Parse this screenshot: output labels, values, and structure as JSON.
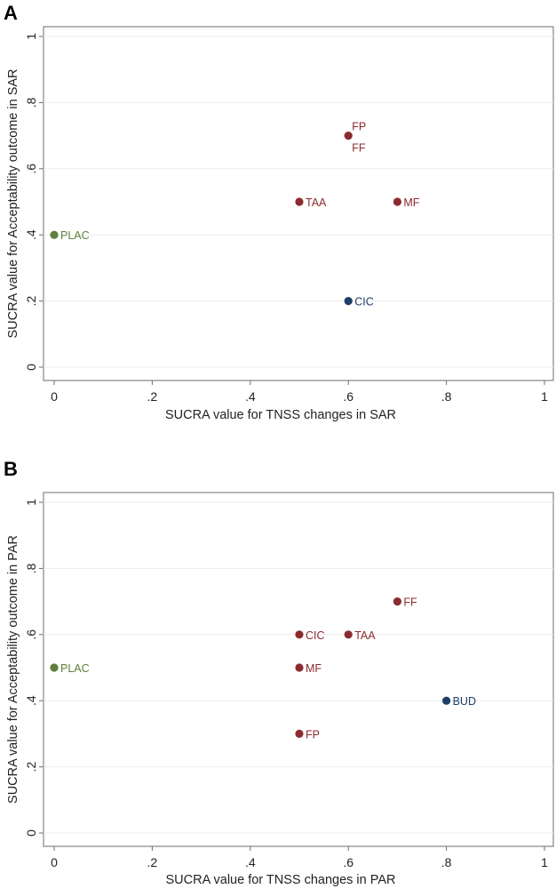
{
  "chart_data": [
    {
      "panel": "A",
      "type": "scatter",
      "xlabel": "SUCRA value for TNSS changes in SAR",
      "ylabel": "SUCRA value for Acceptability outcome in SAR",
      "xlim": [
        0,
        1
      ],
      "ylim": [
        0,
        1
      ],
      "xticks": [
        "0",
        ".2",
        ".4",
        ".6",
        ".8",
        "1"
      ],
      "yticks": [
        "0",
        ".2",
        ".4",
        ".6",
        ".8",
        "1"
      ],
      "grid": true,
      "points": [
        {
          "label": "FP",
          "x": 0.6,
          "y": 0.7,
          "color": "#8b2b2f",
          "label_pos": "above-right"
        },
        {
          "label": "FF",
          "x": 0.6,
          "y": 0.7,
          "color": "#8b2b2f",
          "label_pos": "below-right"
        },
        {
          "label": "TAA",
          "x": 0.5,
          "y": 0.5,
          "color": "#8b2b2f",
          "label_pos": "right"
        },
        {
          "label": "MF",
          "x": 0.7,
          "y": 0.5,
          "color": "#8b2b2f",
          "label_pos": "right"
        },
        {
          "label": "PLAC",
          "x": 0.0,
          "y": 0.4,
          "color": "#5f7f3a",
          "label_pos": "right"
        },
        {
          "label": "CIC",
          "x": 0.6,
          "y": 0.2,
          "color": "#1f3f66",
          "label_pos": "right"
        }
      ]
    },
    {
      "panel": "B",
      "type": "scatter",
      "xlabel": "SUCRA value for TNSS changes in PAR",
      "ylabel": "SUCRA value for Acceptability outcome in PAR",
      "xlim": [
        0,
        1
      ],
      "ylim": [
        0,
        1
      ],
      "xticks": [
        "0",
        ".2",
        ".4",
        ".6",
        ".8",
        "1"
      ],
      "yticks": [
        "0",
        ".2",
        ".4",
        ".6",
        ".8",
        "1"
      ],
      "grid": true,
      "points": [
        {
          "label": "FF",
          "x": 0.7,
          "y": 0.7,
          "color": "#8b2b2f",
          "label_pos": "right"
        },
        {
          "label": "CIC",
          "x": 0.5,
          "y": 0.6,
          "color": "#8b2b2f",
          "label_pos": "right"
        },
        {
          "label": "TAA",
          "x": 0.6,
          "y": 0.6,
          "color": "#8b2b2f",
          "label_pos": "right"
        },
        {
          "label": "PLAC",
          "x": 0.0,
          "y": 0.5,
          "color": "#5f7f3a",
          "label_pos": "right"
        },
        {
          "label": "MF",
          "x": 0.5,
          "y": 0.5,
          "color": "#8b2b2f",
          "label_pos": "right"
        },
        {
          "label": "BUD",
          "x": 0.8,
          "y": 0.4,
          "color": "#1f3f66",
          "label_pos": "right"
        },
        {
          "label": "FP",
          "x": 0.5,
          "y": 0.3,
          "color": "#8b2b2f",
          "label_pos": "right"
        }
      ]
    }
  ]
}
